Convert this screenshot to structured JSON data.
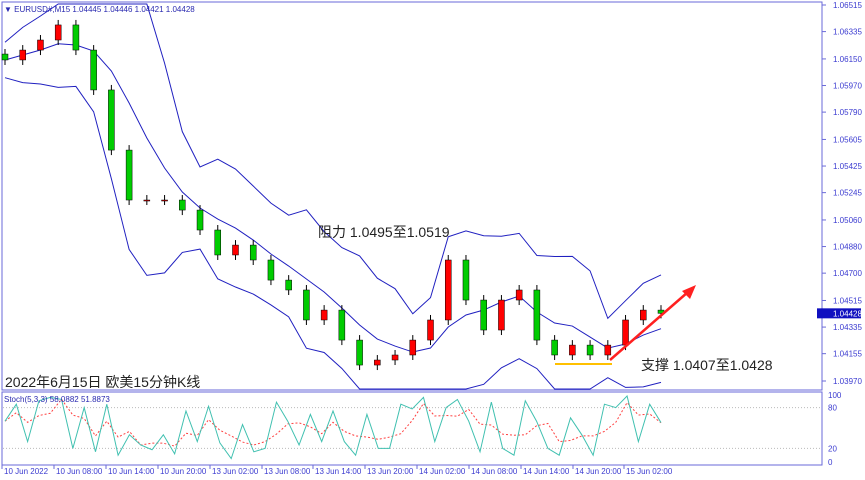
{
  "header": {
    "symbol": "EURUSD#,M15",
    "ohlc": "1.04445 1.04446 1.04421 1.04428"
  },
  "stoch_label": "Stoch(5,3,3) 58.0882 51.8873",
  "annotations": {
    "resistance": "阻力 1.0495至1.0519",
    "support": "支撑 1.0407至1.0428",
    "caption": "2022年6月15日 欧美15分钟K线"
  },
  "colors": {
    "bull": "#ff0000",
    "bear": "#00cc00",
    "bands": "#2020c0",
    "stoch_main": "#40c0b0",
    "stoch_signal": "#ff4040",
    "arrow": "#ff2020",
    "support_line": "#ffc000"
  },
  "chart_data": [
    {
      "type": "candlestick",
      "ylim": [
        1.0397,
        1.06515
      ],
      "y_ticks": [
        "1.06515",
        "1.06335",
        "1.06150",
        "1.05970",
        "1.05790",
        "1.05605",
        "1.05425",
        "1.05245",
        "1.05060",
        "1.04880",
        "1.04700",
        "1.04515",
        "1.04335",
        "1.04155",
        "1.03970"
      ],
      "current_price": "1.04428",
      "x_ticks": [
        "10 Jun 2022",
        "10 Jun 08:00",
        "10 Jun 14:00",
        "10 Jun 20:00",
        "13 Jun 02:00",
        "13 Jun 08:00",
        "13 Jun 14:00",
        "13 Jun 20:00",
        "14 Jun 02:00",
        "14 Jun 08:00",
        "14 Jun 14:00",
        "14 Jun 20:00",
        "15 Jun 02:00"
      ],
      "closes": [
        1.06143,
        1.0621,
        1.06278,
        1.0638,
        1.0621,
        1.0594,
        1.05533,
        1.05195,
        1.05195,
        1.05195,
        1.05127,
        1.04992,
        1.04823,
        1.0489,
        1.04789,
        1.04653,
        1.04586,
        1.04383,
        1.0445,
        1.04247,
        1.04078,
        1.04112,
        1.04146,
        1.04247,
        1.04383,
        1.04789,
        1.04518,
        1.04315,
        1.04518,
        1.04586,
        1.04247,
        1.04146,
        1.04213,
        1.04146,
        1.04213,
        1.04383,
        1.0445,
        1.04428
      ]
    },
    {
      "type": "line",
      "name": "Stoch(5,3,3)",
      "ylim": [
        0,
        100
      ],
      "y_ticks": [
        "100",
        "80",
        "20",
        "0"
      ],
      "main": [
        60,
        85,
        30,
        90,
        95,
        92,
        20,
        80,
        15,
        85,
        10,
        40,
        25,
        18,
        40,
        12,
        75,
        30,
        82,
        28,
        5,
        55,
        15,
        20,
        88,
        60,
        25,
        70,
        30,
        75,
        30,
        10,
        70,
        20,
        20,
        85,
        78,
        95,
        30,
        80,
        92,
        60,
        15,
        88,
        20,
        10,
        90,
        60,
        20,
        10,
        65,
        40,
        10,
        85,
        80,
        97,
        30,
        85,
        58
      ]
    }
  ]
}
